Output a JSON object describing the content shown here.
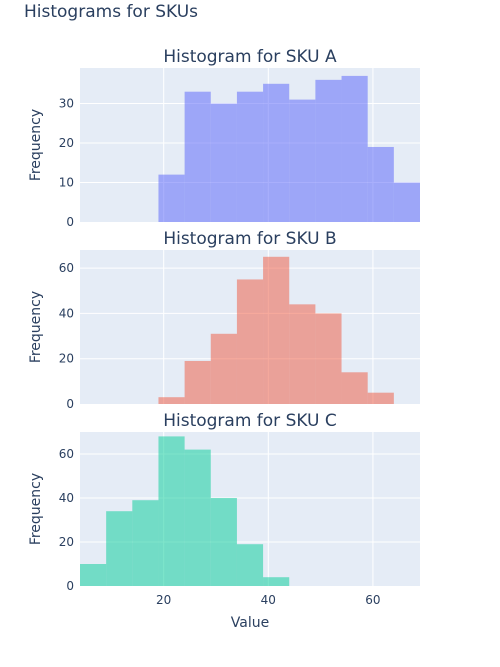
{
  "figure": {
    "title": "Histograms for SKUs",
    "plot_bg": "#E5ECF6",
    "font_color": "#2a3f5f",
    "grid_color": "#ffffff"
  },
  "chart_data": [
    {
      "type": "bar",
      "title": "Histogram for SKU A",
      "ylabel": "Frequency",
      "xlabel": "",
      "color": "#636EFA",
      "opacity": 0.55,
      "xlim": [
        4,
        69
      ],
      "ylim": [
        0,
        39
      ],
      "yticks": [
        0,
        10,
        20,
        30
      ],
      "bins": [
        {
          "x0": 19,
          "x1": 24,
          "count": 12
        },
        {
          "x0": 24,
          "x1": 29,
          "count": 33
        },
        {
          "x0": 29,
          "x1": 34,
          "count": 30
        },
        {
          "x0": 34,
          "x1": 39,
          "count": 33
        },
        {
          "x0": 39,
          "x1": 44,
          "count": 35
        },
        {
          "x0": 44,
          "x1": 49,
          "count": 31
        },
        {
          "x0": 49,
          "x1": 54,
          "count": 36
        },
        {
          "x0": 54,
          "x1": 59,
          "count": 37
        },
        {
          "x0": 59,
          "x1": 64,
          "count": 19
        },
        {
          "x0": 64,
          "x1": 69,
          "count": 10
        }
      ]
    },
    {
      "type": "bar",
      "title": "Histogram for SKU B",
      "ylabel": "Frequency",
      "xlabel": "",
      "color": "#EF553B",
      "opacity": 0.5,
      "xlim": [
        4,
        69
      ],
      "ylim": [
        0,
        68
      ],
      "yticks": [
        0,
        20,
        40,
        60
      ],
      "bins": [
        {
          "x0": 19,
          "x1": 24,
          "count": 3
        },
        {
          "x0": 24,
          "x1": 29,
          "count": 19
        },
        {
          "x0": 29,
          "x1": 34,
          "count": 31
        },
        {
          "x0": 34,
          "x1": 39,
          "count": 55
        },
        {
          "x0": 39,
          "x1": 44,
          "count": 65
        },
        {
          "x0": 44,
          "x1": 49,
          "count": 44
        },
        {
          "x0": 49,
          "x1": 54,
          "count": 40
        },
        {
          "x0": 54,
          "x1": 59,
          "count": 14
        },
        {
          "x0": 59,
          "x1": 64,
          "count": 5
        }
      ]
    },
    {
      "type": "bar",
      "title": "Histogram for SKU C",
      "ylabel": "Frequency",
      "xlabel": "Value",
      "color": "#00CC96",
      "opacity": 0.5,
      "xlim": [
        4,
        69
      ],
      "ylim": [
        0,
        70
      ],
      "yticks": [
        0,
        20,
        40,
        60
      ],
      "xticks": [
        20,
        40,
        60
      ],
      "bins": [
        {
          "x0": 4,
          "x1": 9,
          "count": 10
        },
        {
          "x0": 9,
          "x1": 14,
          "count": 34
        },
        {
          "x0": 14,
          "x1": 19,
          "count": 39
        },
        {
          "x0": 19,
          "x1": 24,
          "count": 68
        },
        {
          "x0": 24,
          "x1": 29,
          "count": 62
        },
        {
          "x0": 29,
          "x1": 34,
          "count": 40
        },
        {
          "x0": 34,
          "x1": 39,
          "count": 19
        },
        {
          "x0": 39,
          "x1": 44,
          "count": 4
        }
      ]
    }
  ]
}
